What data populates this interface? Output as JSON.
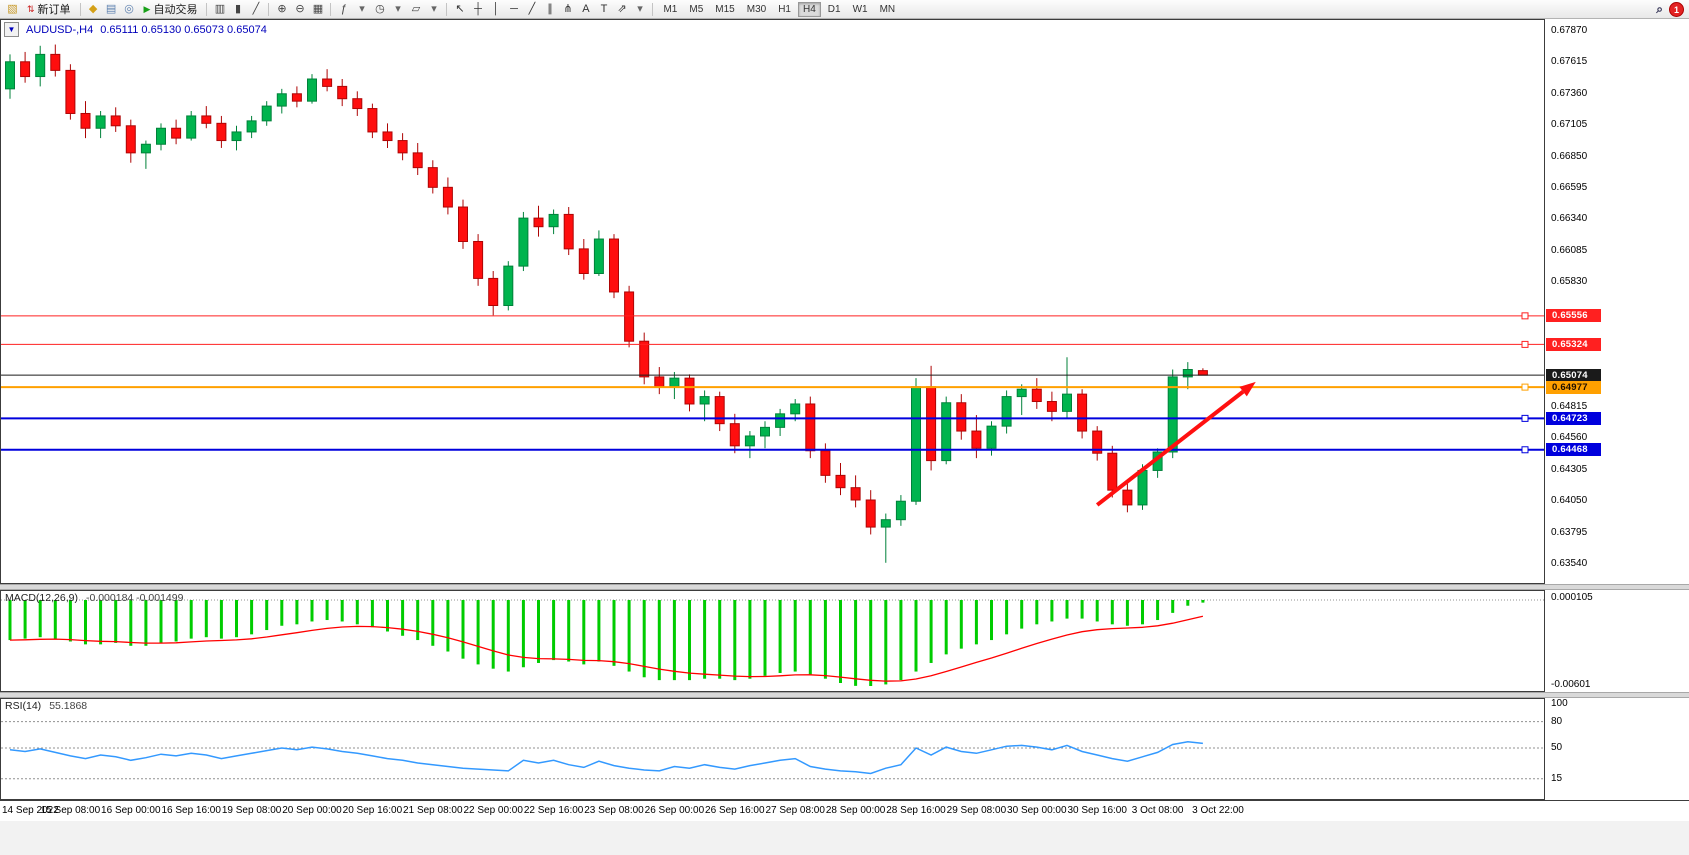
{
  "toolbar": {
    "search_glyph": "⌕",
    "notification_count": "1",
    "active_timeframe": "H4",
    "timeframes": [
      "M1",
      "M5",
      "M15",
      "M30",
      "H1",
      "H4",
      "D1",
      "W1",
      "MN"
    ],
    "items": [
      {
        "t": "icon",
        "name": "new-chart-icon",
        "g": "▧",
        "c": "#c89a2a"
      },
      {
        "t": "btn",
        "name": "new-order-button",
        "g": "⇅",
        "gc": "#cc2020",
        "label": "新订单"
      },
      {
        "t": "sep"
      },
      {
        "t": "icon",
        "name": "charts-group-icon",
        "g": "◆",
        "c": "#d4a017"
      },
      {
        "t": "icon",
        "name": "print-icon",
        "g": "▤",
        "c": "#5b7fae"
      },
      {
        "t": "icon",
        "name": "data-window-icon",
        "g": "◎",
        "c": "#5b7fae"
      },
      {
        "t": "btn",
        "name": "auto-trading-button",
        "g": "▶",
        "gc": "#18a018",
        "label": "自动交易"
      },
      {
        "t": "sep"
      },
      {
        "t": "icon",
        "name": "bar-chart-icon",
        "g": "▥",
        "c": "#444444"
      },
      {
        "t": "icon",
        "name": "candlestick-chart-icon",
        "g": "▮",
        "c": "#444444"
      },
      {
        "t": "icon",
        "name": "line-chart-icon",
        "g": "╱",
        "c": "#444444"
      },
      {
        "t": "sep"
      },
      {
        "t": "icon",
        "name": "zoom-in-icon",
        "g": "⊕",
        "c": "#444444"
      },
      {
        "t": "icon",
        "name": "zoom-out-icon",
        "g": "⊖",
        "c": "#444444"
      },
      {
        "t": "icon",
        "name": "tile-windows-icon",
        "g": "▦",
        "c": "#444444"
      },
      {
        "t": "sep"
      },
      {
        "t": "icon",
        "name": "indicators-icon",
        "g": "ƒ",
        "c": "#444444"
      },
      {
        "t": "icon",
        "name": "indicators-dropdown-icon",
        "g": "▾",
        "c": "#666666"
      },
      {
        "t": "icon",
        "name": "periods-icon",
        "g": "◷",
        "c": "#444444"
      },
      {
        "t": "icon",
        "name": "periods-dropdown-icon",
        "g": "▾",
        "c": "#666666"
      },
      {
        "t": "icon",
        "name": "templates-icon",
        "g": "▱",
        "c": "#444444"
      },
      {
        "t": "icon",
        "name": "templates-dropdown-icon",
        "g": "▾",
        "c": "#666666"
      },
      {
        "t": "sep"
      },
      {
        "t": "icon",
        "name": "cursor-icon",
        "g": "↖",
        "c": "#333333"
      },
      {
        "t": "icon",
        "name": "crosshair-icon",
        "g": "┼",
        "c": "#333333"
      },
      {
        "t": "icon",
        "name": "vertical-line-icon",
        "g": "│",
        "c": "#333333"
      },
      {
        "t": "icon",
        "name": "horizontal-line-icon",
        "g": "─",
        "c": "#333333"
      },
      {
        "t": "icon",
        "name": "trendline-icon",
        "g": "╱",
        "c": "#333333"
      },
      {
        "t": "icon",
        "name": "channel-icon",
        "g": "∥",
        "c": "#333333"
      },
      {
        "t": "icon",
        "name": "fibonacci-icon",
        "g": "⋔",
        "c": "#333333"
      },
      {
        "t": "icon",
        "name": "text-icon",
        "g": "A",
        "c": "#333333"
      },
      {
        "t": "icon",
        "name": "label-icon",
        "g": "T",
        "c": "#333333"
      },
      {
        "t": "icon",
        "name": "arrows-icon",
        "g": "⇗",
        "c": "#333333"
      },
      {
        "t": "icon",
        "name": "shapes-dropdown-icon",
        "g": "▾",
        "c": "#666666"
      },
      {
        "t": "sep"
      }
    ]
  },
  "chart_data": {
    "type": "candlestick",
    "header": {
      "symbol": "AUDUSD-,H4",
      "ohlc": "0.65111 0.65130 0.65073 0.65074",
      "dropdown_glyph": "▼"
    },
    "price_axis": {
      "max": 0.6787,
      "min": 0.6354,
      "ticks": [
        "0.67870",
        "0.67615",
        "0.67360",
        "0.67105",
        "0.66850",
        "0.66595",
        "0.66340",
        "0.66085",
        "0.65830",
        "0.64815",
        "0.64560",
        "0.64305",
        "0.64050",
        "0.63795",
        "0.63540"
      ]
    },
    "hlines": [
      {
        "price": 0.65556,
        "label": "0.65556",
        "color": "#ff2020",
        "width": 1,
        "text": "#ffffff",
        "handle": true
      },
      {
        "price": 0.65324,
        "label": "0.65324",
        "color": "#ff2020",
        "width": 1,
        "text": "#ffffff",
        "handle": true
      },
      {
        "price": 0.65074,
        "label": "0.65074",
        "color": "#1a1a1a",
        "width": 1,
        "text": "#ffffff",
        "handle": false
      },
      {
        "price": 0.64977,
        "label": "0.64977",
        "color": "#ffa000",
        "width": 2,
        "text": "#201000",
        "handle": true
      },
      {
        "price": 0.64723,
        "label": "0.64723",
        "color": "#0000dd",
        "width": 2,
        "text": "#ffffff",
        "handle": true
      },
      {
        "price": 0.64468,
        "label": "0.64468",
        "color": "#0000dd",
        "width": 2,
        "text": "#ffffff",
        "handle": true
      }
    ],
    "arrow": {
      "i1": 72.0,
      "p1": 0.6402,
      "i2": 82.5,
      "p2": 0.6502,
      "color": "#ff1010",
      "width": 4
    },
    "candles": [
      [
        0.674,
        0.6768,
        0.6732,
        0.6762
      ],
      [
        0.6762,
        0.677,
        0.6745,
        0.675
      ],
      [
        0.675,
        0.6775,
        0.6742,
        0.6768
      ],
      [
        0.6768,
        0.6776,
        0.675,
        0.6755
      ],
      [
        0.6755,
        0.676,
        0.6715,
        0.672
      ],
      [
        0.672,
        0.673,
        0.67,
        0.6708
      ],
      [
        0.6708,
        0.6722,
        0.67,
        0.6718
      ],
      [
        0.6718,
        0.6725,
        0.6705,
        0.671
      ],
      [
        0.671,
        0.6715,
        0.668,
        0.6688
      ],
      [
        0.6688,
        0.6698,
        0.6675,
        0.6695
      ],
      [
        0.6695,
        0.6712,
        0.669,
        0.6708
      ],
      [
        0.6708,
        0.6715,
        0.6695,
        0.67
      ],
      [
        0.67,
        0.6722,
        0.6698,
        0.6718
      ],
      [
        0.6718,
        0.6726,
        0.6708,
        0.6712
      ],
      [
        0.6712,
        0.6718,
        0.6692,
        0.6698
      ],
      [
        0.6698,
        0.671,
        0.669,
        0.6705
      ],
      [
        0.6705,
        0.6718,
        0.67,
        0.6714
      ],
      [
        0.6714,
        0.673,
        0.671,
        0.6726
      ],
      [
        0.6726,
        0.674,
        0.672,
        0.6736
      ],
      [
        0.6736,
        0.6742,
        0.6725,
        0.673
      ],
      [
        0.673,
        0.6752,
        0.6728,
        0.6748
      ],
      [
        0.6748,
        0.6756,
        0.6738,
        0.6742
      ],
      [
        0.6742,
        0.6748,
        0.6726,
        0.6732
      ],
      [
        0.6732,
        0.6738,
        0.6718,
        0.6724
      ],
      [
        0.6724,
        0.6728,
        0.67,
        0.6705
      ],
      [
        0.6705,
        0.6712,
        0.6692,
        0.6698
      ],
      [
        0.6698,
        0.6704,
        0.6682,
        0.6688
      ],
      [
        0.6688,
        0.6696,
        0.667,
        0.6676
      ],
      [
        0.6676,
        0.6682,
        0.6655,
        0.666
      ],
      [
        0.666,
        0.6668,
        0.6638,
        0.6644
      ],
      [
        0.6644,
        0.665,
        0.661,
        0.6616
      ],
      [
        0.6616,
        0.6622,
        0.658,
        0.6586
      ],
      [
        0.6586,
        0.6592,
        0.6556,
        0.6564
      ],
      [
        0.6564,
        0.66,
        0.656,
        0.6596
      ],
      [
        0.6596,
        0.664,
        0.6592,
        0.6635
      ],
      [
        0.6635,
        0.6645,
        0.662,
        0.6628
      ],
      [
        0.6628,
        0.6642,
        0.6622,
        0.6638
      ],
      [
        0.6638,
        0.6644,
        0.6605,
        0.661
      ],
      [
        0.661,
        0.6618,
        0.6585,
        0.659
      ],
      [
        0.659,
        0.6625,
        0.6588,
        0.6618
      ],
      [
        0.6618,
        0.6622,
        0.657,
        0.6575
      ],
      [
        0.6575,
        0.658,
        0.653,
        0.6535
      ],
      [
        0.6535,
        0.6542,
        0.65,
        0.6506
      ],
      [
        0.6506,
        0.6514,
        0.6492,
        0.6498
      ],
      [
        0.6498,
        0.651,
        0.6488,
        0.6505
      ],
      [
        0.6505,
        0.6508,
        0.6478,
        0.6484
      ],
      [
        0.6484,
        0.6495,
        0.647,
        0.649
      ],
      [
        0.649,
        0.6494,
        0.6462,
        0.6468
      ],
      [
        0.6468,
        0.6476,
        0.6444,
        0.645
      ],
      [
        0.645,
        0.6462,
        0.644,
        0.6458
      ],
      [
        0.6458,
        0.647,
        0.6448,
        0.6465
      ],
      [
        0.6465,
        0.648,
        0.6458,
        0.6476
      ],
      [
        0.6476,
        0.6488,
        0.647,
        0.6484
      ],
      [
        0.6484,
        0.649,
        0.644,
        0.6446
      ],
      [
        0.6446,
        0.6452,
        0.642,
        0.6426
      ],
      [
        0.6426,
        0.6436,
        0.641,
        0.6416
      ],
      [
        0.6416,
        0.6426,
        0.64,
        0.6406
      ],
      [
        0.6406,
        0.6414,
        0.6378,
        0.6384
      ],
      [
        0.6384,
        0.6395,
        0.6355,
        0.639
      ],
      [
        0.639,
        0.641,
        0.6385,
        0.6405
      ],
      [
        0.6405,
        0.6505,
        0.6402,
        0.6498
      ],
      [
        0.6498,
        0.6515,
        0.643,
        0.6438
      ],
      [
        0.6438,
        0.649,
        0.6435,
        0.6485
      ],
      [
        0.6485,
        0.6492,
        0.6455,
        0.6462
      ],
      [
        0.6462,
        0.6475,
        0.644,
        0.6448
      ],
      [
        0.6448,
        0.647,
        0.6442,
        0.6466
      ],
      [
        0.6466,
        0.6495,
        0.646,
        0.649
      ],
      [
        0.649,
        0.65,
        0.6475,
        0.6496
      ],
      [
        0.6496,
        0.6505,
        0.648,
        0.6486
      ],
      [
        0.6486,
        0.6494,
        0.647,
        0.6478
      ],
      [
        0.6478,
        0.6522,
        0.6472,
        0.6492
      ],
      [
        0.6492,
        0.6496,
        0.6456,
        0.6462
      ],
      [
        0.6462,
        0.6466,
        0.6438,
        0.6444
      ],
      [
        0.6444,
        0.645,
        0.6408,
        0.6414
      ],
      [
        0.6414,
        0.6422,
        0.6396,
        0.6402
      ],
      [
        0.6402,
        0.6435,
        0.6398,
        0.643
      ],
      [
        0.643,
        0.6448,
        0.6424,
        0.6445
      ],
      [
        0.6445,
        0.6512,
        0.644,
        0.6506
      ],
      [
        0.6506,
        0.6518,
        0.6496,
        0.6512
      ],
      [
        0.65111,
        0.6513,
        0.65073,
        0.65074
      ]
    ],
    "macd": {
      "name": "MACD(12,26,9)",
      "values": "-0.000184 -0.001499",
      "scale_top": "0.000105",
      "scale_bottom": "-0.00601",
      "max": 0.000105,
      "min": -0.00601,
      "hist": [
        -0.0028,
        -0.0027,
        -0.0026,
        -0.0027,
        -0.0029,
        -0.0031,
        -0.0031,
        -0.003,
        -0.0032,
        -0.0032,
        -0.003,
        -0.0029,
        -0.0027,
        -0.0026,
        -0.0027,
        -0.0026,
        -0.0024,
        -0.0021,
        -0.0018,
        -0.0017,
        -0.0015,
        -0.0014,
        -0.0015,
        -0.0017,
        -0.0019,
        -0.0022,
        -0.0025,
        -0.0028,
        -0.0032,
        -0.0036,
        -0.0041,
        -0.0045,
        -0.0048,
        -0.005,
        -0.0047,
        -0.0044,
        -0.0042,
        -0.0043,
        -0.0045,
        -0.0043,
        -0.0046,
        -0.005,
        -0.0054,
        -0.0056,
        -0.0056,
        -0.0056,
        -0.0055,
        -0.0055,
        -0.0056,
        -0.0055,
        -0.0053,
        -0.0051,
        -0.005,
        -0.0052,
        -0.0055,
        -0.0058,
        -0.006,
        -0.00601,
        -0.0059,
        -0.0056,
        -0.005,
        -0.0044,
        -0.0038,
        -0.0034,
        -0.0031,
        -0.0028,
        -0.0024,
        -0.002,
        -0.0017,
        -0.0015,
        -0.0013,
        -0.0013,
        -0.0015,
        -0.0017,
        -0.0018,
        -0.0017,
        -0.0014,
        -0.0009,
        -0.0004,
        -0.000184
      ]
    },
    "rsi": {
      "name": "RSI(14)",
      "value": "55.1868",
      "max": 100,
      "min": 0,
      "levels": [
        80,
        50,
        15
      ],
      "scale_labels": [
        100,
        80,
        50,
        15
      ],
      "values": [
        48,
        46,
        49,
        45,
        41,
        38,
        42,
        40,
        36,
        39,
        43,
        41,
        44,
        42,
        38,
        41,
        44,
        47,
        50,
        48,
        51,
        49,
        46,
        44,
        41,
        38,
        36,
        33,
        31,
        29,
        27,
        26,
        25,
        24,
        36,
        33,
        36,
        31,
        28,
        35,
        30,
        27,
        25,
        24,
        29,
        27,
        31,
        28,
        26,
        30,
        33,
        36,
        38,
        29,
        26,
        24,
        23,
        21,
        27,
        31,
        50,
        42,
        51,
        46,
        44,
        48,
        52,
        53,
        51,
        48,
        53,
        46,
        42,
        38,
        35,
        40,
        45,
        54,
        57,
        55.1868
      ]
    },
    "time_labels": [
      "14 Sep 2022",
      "15 Sep 08:00",
      "16 Sep 00:00",
      "16 Sep 16:00",
      "19 Sep 08:00",
      "20 Sep 00:00",
      "20 Sep 16:00",
      "21 Sep 08:00",
      "22 Sep 00:00",
      "22 Sep 16:00",
      "23 Sep 08:00",
      "26 Sep 00:00",
      "26 Sep 16:00",
      "27 Sep 08:00",
      "28 Sep 00:00",
      "28 Sep 16:00",
      "29 Sep 08:00",
      "30 Sep 00:00",
      "30 Sep 16:00",
      "3 Oct 08:00",
      "3 Oct 22:00"
    ],
    "candles_per_label": 4
  }
}
